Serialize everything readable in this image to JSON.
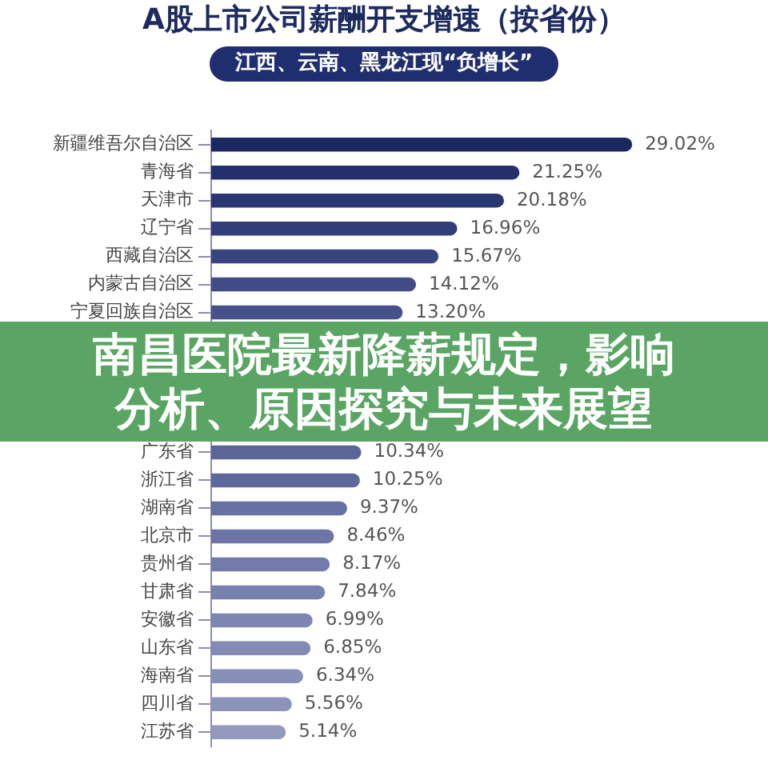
{
  "chart_data": {
    "type": "bar",
    "orientation": "horizontal",
    "title": "A股上市公司薪酬开支增速（按省份）",
    "subtitle": "江西、云南、黑龙江现“负增长”",
    "annotations": [
      "南昌医院最新降薪规定，影响分析、原因探究与未来展望"
    ],
    "categories": [
      "新疆维吾尔自治区",
      "青海省",
      "天津市",
      "辽宁省",
      "西藏自治区",
      "内蒙古自治区",
      "宁夏回族自治区",
      null,
      null,
      null,
      null,
      "广东省",
      "浙江省",
      "湖南省",
      "北京市",
      "贵州省",
      "甘肃省",
      "安徽省",
      "山东省",
      "海南省",
      "四川省",
      "江苏省"
    ],
    "values": [
      29.02,
      21.25,
      20.18,
      16.96,
      15.67,
      14.12,
      13.2,
      null,
      null,
      null,
      null,
      10.34,
      10.25,
      9.37,
      8.46,
      8.17,
      7.84,
      6.99,
      6.85,
      6.34,
      5.56,
      5.14
    ],
    "value_labels": [
      "29.02%",
      "21.25%",
      "20.18%",
      "16.96%",
      "15.67%",
      "14.12%",
      "13.20%",
      null,
      null,
      null,
      null,
      "10.34%",
      "10.25%",
      "9.37%",
      "8.46%",
      "8.17%",
      "7.84%",
      "6.99%",
      "6.85%",
      "6.34%",
      "5.56%",
      "5.14%"
    ],
    "colors": [
      "#1c2960",
      "#24306b",
      "#2a3672",
      "#323e7a",
      "#3a457f",
      "#414b85",
      "#47518a",
      null,
      null,
      null,
      null,
      "#5c6598",
      "#5f689c",
      "#6770a2",
      "#6c75a6",
      "#737baa",
      "#7880ad",
      "#7d85b0",
      "#838ab3",
      "#888fb6",
      "#8d94b9",
      "#9399bd"
    ],
    "tick_labels": "y"
  }
}
